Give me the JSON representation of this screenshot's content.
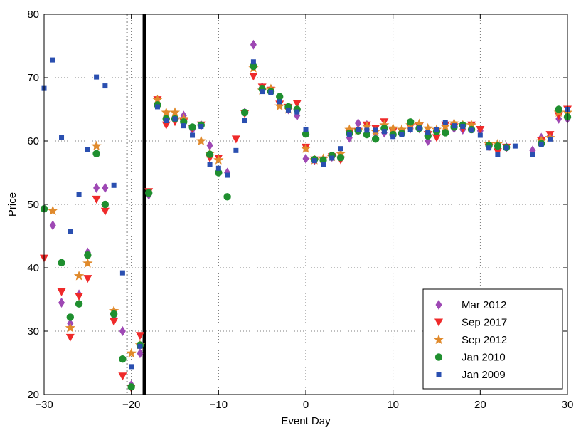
{
  "chart_data": {
    "type": "scatter",
    "xlabel": "Event Day",
    "ylabel": "Price",
    "xlim": [
      -30,
      30
    ],
    "ylim": [
      20,
      80
    ],
    "xticks": [
      -30,
      -20,
      -10,
      0,
      10,
      20,
      30
    ],
    "yticks": [
      20,
      30,
      40,
      50,
      60,
      70,
      80
    ],
    "xtick_labels": [
      "−30",
      "−20",
      "−10",
      "0",
      "10",
      "20",
      "30"
    ],
    "ytick_labels": [
      "20",
      "30",
      "40",
      "50",
      "60",
      "70",
      "80"
    ],
    "grid": true,
    "legend_position": "bottom-right",
    "vertical_lines": [
      {
        "x": -20.5,
        "style": "dotted"
      },
      {
        "x": -18.5,
        "style": "solid"
      }
    ],
    "series": [
      {
        "name": "Mar 2012",
        "marker": "diamond",
        "color": "#9e48b4",
        "points": [
          [
            -29,
            46.7
          ],
          [
            -28,
            34.5
          ],
          [
            -27,
            31.2
          ],
          [
            -26,
            35.8
          ],
          [
            -25,
            42.4
          ],
          [
            -24,
            52.6
          ],
          [
            -23,
            52.6
          ],
          [
            -22,
            32
          ],
          [
            -21,
            30
          ],
          [
            -20,
            21.5
          ],
          [
            -19,
            26.5
          ],
          [
            -18,
            51.5
          ],
          [
            -17,
            66
          ],
          [
            -16,
            63.2
          ],
          [
            -15,
            63.5
          ],
          [
            -14,
            64
          ],
          [
            -13,
            61.8
          ],
          [
            -12,
            62.5
          ],
          [
            -11,
            59.3
          ],
          [
            -10,
            55.2
          ],
          [
            -9,
            55
          ],
          [
            -7,
            64.5
          ],
          [
            -6,
            75.2
          ],
          [
            -5,
            68.5
          ],
          [
            -4,
            68.2
          ],
          [
            -3,
            66.2
          ],
          [
            -2,
            65
          ],
          [
            -1,
            64
          ],
          [
            0,
            57.2
          ],
          [
            1,
            57
          ],
          [
            2,
            56.9
          ],
          [
            3,
            57.5
          ],
          [
            4,
            57.5
          ],
          [
            5,
            60.5
          ],
          [
            6,
            62.8
          ],
          [
            7,
            62.5
          ],
          [
            8,
            61.2
          ],
          [
            9,
            61.3
          ],
          [
            10,
            61
          ],
          [
            11,
            61.5
          ],
          [
            12,
            62
          ],
          [
            13,
            62
          ],
          [
            14,
            60
          ],
          [
            15,
            61
          ],
          [
            16,
            62.5
          ],
          [
            17,
            62
          ],
          [
            18,
            61.8
          ],
          [
            19,
            62
          ],
          [
            20,
            61.6
          ],
          [
            21,
            59.2
          ],
          [
            22,
            58.8
          ],
          [
            23,
            59
          ],
          [
            26,
            58.5
          ],
          [
            27,
            60.5
          ],
          [
            28,
            60.8
          ],
          [
            29,
            63.5
          ],
          [
            30,
            63.5
          ]
        ]
      },
      {
        "name": "Sep 2017",
        "marker": "triangle-down",
        "color": "#ef2a2a",
        "points": [
          [
            -30,
            41.5
          ],
          [
            -28,
            36.2
          ],
          [
            -27,
            29
          ],
          [
            -26,
            35.5
          ],
          [
            -25,
            38.3
          ],
          [
            -24,
            50.8
          ],
          [
            -23,
            48.9
          ],
          [
            -22,
            31.5
          ],
          [
            -21,
            22.9
          ],
          [
            -20,
            21
          ],
          [
            -19,
            29.3
          ],
          [
            -18,
            52
          ],
          [
            -17,
            66.5
          ],
          [
            -16,
            62.5
          ],
          [
            -15,
            63
          ],
          [
            -14,
            63
          ],
          [
            -13,
            62
          ],
          [
            -12,
            62.5
          ],
          [
            -11,
            57.3
          ],
          [
            -10,
            57.3
          ],
          [
            -8,
            60.3
          ],
          [
            -7,
            64.3
          ],
          [
            -6,
            70.2
          ],
          [
            -5,
            68.5
          ],
          [
            -4,
            68
          ],
          [
            -3,
            65.8
          ],
          [
            -2,
            65.3
          ],
          [
            -1,
            65.9
          ],
          [
            0,
            59
          ],
          [
            1,
            57
          ],
          [
            2,
            57
          ],
          [
            3,
            57.5
          ],
          [
            4,
            57
          ],
          [
            5,
            61.2
          ],
          [
            6,
            61.5
          ],
          [
            7,
            62.5
          ],
          [
            8,
            62
          ],
          [
            9,
            63
          ],
          [
            10,
            61.5
          ],
          [
            11,
            61.5
          ],
          [
            12,
            62.2
          ],
          [
            13,
            62.3
          ],
          [
            14,
            61
          ],
          [
            15,
            60.5
          ],
          [
            16,
            62.5
          ],
          [
            17,
            62.2
          ],
          [
            18,
            62
          ],
          [
            19,
            62.5
          ],
          [
            20,
            61.8
          ],
          [
            21,
            59
          ],
          [
            22,
            58.3
          ],
          [
            23,
            59
          ],
          [
            27,
            60
          ],
          [
            28,
            61
          ],
          [
            29,
            64
          ],
          [
            30,
            65
          ]
        ]
      },
      {
        "name": "Sep 2012",
        "marker": "star",
        "color": "#e08a2c",
        "points": [
          [
            -29,
            49
          ],
          [
            -27,
            30.5
          ],
          [
            -26,
            38.7
          ],
          [
            -25,
            40.7
          ],
          [
            -24,
            59.2
          ],
          [
            -22,
            33.2
          ],
          [
            -20,
            26.5
          ],
          [
            -19,
            27.8
          ],
          [
            -17,
            66.5
          ],
          [
            -16,
            64.5
          ],
          [
            -15,
            64.5
          ],
          [
            -14,
            63.5
          ],
          [
            -12,
            60
          ],
          [
            -11,
            58
          ],
          [
            -10,
            57
          ],
          [
            -6,
            71.5
          ],
          [
            -5,
            68
          ],
          [
            -4,
            68.2
          ],
          [
            -3,
            65.5
          ],
          [
            -2,
            65
          ],
          [
            0,
            58.8
          ],
          [
            1,
            57
          ],
          [
            2,
            57.2
          ],
          [
            3,
            57.5
          ],
          [
            4,
            58
          ],
          [
            5,
            61.8
          ],
          [
            6,
            61.7
          ],
          [
            7,
            62.3
          ],
          [
            8,
            61.5
          ],
          [
            9,
            62.5
          ],
          [
            10,
            62
          ],
          [
            11,
            61.8
          ],
          [
            12,
            62.5
          ],
          [
            13,
            62.7
          ],
          [
            14,
            62
          ],
          [
            15,
            61.8
          ],
          [
            16,
            62.3
          ],
          [
            17,
            62.8
          ],
          [
            18,
            62.5
          ],
          [
            19,
            62.5
          ],
          [
            21,
            59.5
          ],
          [
            22,
            59.5
          ],
          [
            27,
            60
          ],
          [
            28,
            60.5
          ],
          [
            29,
            64.5
          ],
          [
            30,
            64.5
          ]
        ]
      },
      {
        "name": "Jan 2010",
        "marker": "circle",
        "color": "#1f8f2f",
        "points": [
          [
            -30,
            49.3
          ],
          [
            -28,
            40.8
          ],
          [
            -27,
            32.2
          ],
          [
            -26,
            34.3
          ],
          [
            -25,
            42
          ],
          [
            -24,
            58
          ],
          [
            -23,
            50
          ],
          [
            -22,
            32.7
          ],
          [
            -21,
            25.6
          ],
          [
            -20,
            21.2
          ],
          [
            -19,
            27.8
          ],
          [
            -18,
            51.8
          ],
          [
            -17,
            65.7
          ],
          [
            -16,
            63.5
          ],
          [
            -15,
            63.5
          ],
          [
            -14,
            63
          ],
          [
            -13,
            62.2
          ],
          [
            -12,
            62.5
          ],
          [
            -11,
            57.9
          ],
          [
            -10,
            55
          ],
          [
            -9,
            51.2
          ],
          [
            -7,
            64.5
          ],
          [
            -6,
            71.8
          ],
          [
            -5,
            68.2
          ],
          [
            -4,
            67.8
          ],
          [
            -3,
            67
          ],
          [
            -2,
            65.4
          ],
          [
            -1,
            65
          ],
          [
            0,
            61.1
          ],
          [
            1,
            57.1
          ],
          [
            2,
            57
          ],
          [
            3,
            57.7
          ],
          [
            4,
            57.4
          ],
          [
            5,
            61.2
          ],
          [
            6,
            61.6
          ],
          [
            7,
            61
          ],
          [
            8,
            60.3
          ],
          [
            9,
            62
          ],
          [
            10,
            61
          ],
          [
            11,
            61.2
          ],
          [
            12,
            63
          ],
          [
            13,
            62
          ],
          [
            14,
            60.8
          ],
          [
            15,
            61.5
          ],
          [
            16,
            61.3
          ],
          [
            17,
            62.2
          ],
          [
            18,
            62.5
          ],
          [
            19,
            61.8
          ],
          [
            21,
            59.3
          ],
          [
            22,
            59.2
          ],
          [
            23,
            59
          ],
          [
            27,
            59.6
          ],
          [
            29,
            65
          ],
          [
            30,
            63.8
          ]
        ]
      },
      {
        "name": "Jan 2009",
        "marker": "square",
        "color": "#2a4fb0",
        "points": [
          [
            -30,
            68.3
          ],
          [
            -29,
            72.8
          ],
          [
            -28,
            60.6
          ],
          [
            -27,
            45.7
          ],
          [
            -26,
            51.6
          ],
          [
            -25,
            58.7
          ],
          [
            -24,
            70.1
          ],
          [
            -23,
            68.7
          ],
          [
            -22,
            53
          ],
          [
            -21,
            39.2
          ],
          [
            -20,
            24.4
          ],
          [
            -19,
            27.6
          ],
          [
            -17,
            65.4
          ],
          [
            -16,
            63.2
          ],
          [
            -15,
            63.5
          ],
          [
            -14,
            62.4
          ],
          [
            -13,
            60.9
          ],
          [
            -12,
            62.3
          ],
          [
            -11,
            56.3
          ],
          [
            -10,
            55.7
          ],
          [
            -9,
            54.6
          ],
          [
            -8,
            58.5
          ],
          [
            -7,
            63.2
          ],
          [
            -6,
            72.5
          ],
          [
            -5,
            67.8
          ],
          [
            -4,
            67.6
          ],
          [
            -3,
            66.2
          ],
          [
            -2,
            64.9
          ],
          [
            -1,
            64.6
          ],
          [
            0,
            61.8
          ],
          [
            1,
            56.9
          ],
          [
            2,
            56.3
          ],
          [
            3,
            57.3
          ],
          [
            4,
            58.8
          ],
          [
            5,
            61
          ],
          [
            6,
            61.8
          ],
          [
            7,
            61.7
          ],
          [
            8,
            61.7
          ],
          [
            9,
            61.5
          ],
          [
            10,
            60.7
          ],
          [
            11,
            61
          ],
          [
            12,
            61.8
          ],
          [
            13,
            62
          ],
          [
            14,
            61.4
          ],
          [
            15,
            61.8
          ],
          [
            16,
            62.9
          ],
          [
            17,
            62.4
          ],
          [
            18,
            62.3
          ],
          [
            19,
            61.7
          ],
          [
            20,
            60.9
          ],
          [
            21,
            58.9
          ],
          [
            22,
            57.9
          ],
          [
            23,
            58.9
          ],
          [
            24,
            59.2
          ],
          [
            26,
            57.9
          ],
          [
            27,
            59.5
          ],
          [
            28,
            60.3
          ],
          [
            30,
            65
          ]
        ]
      }
    ]
  }
}
